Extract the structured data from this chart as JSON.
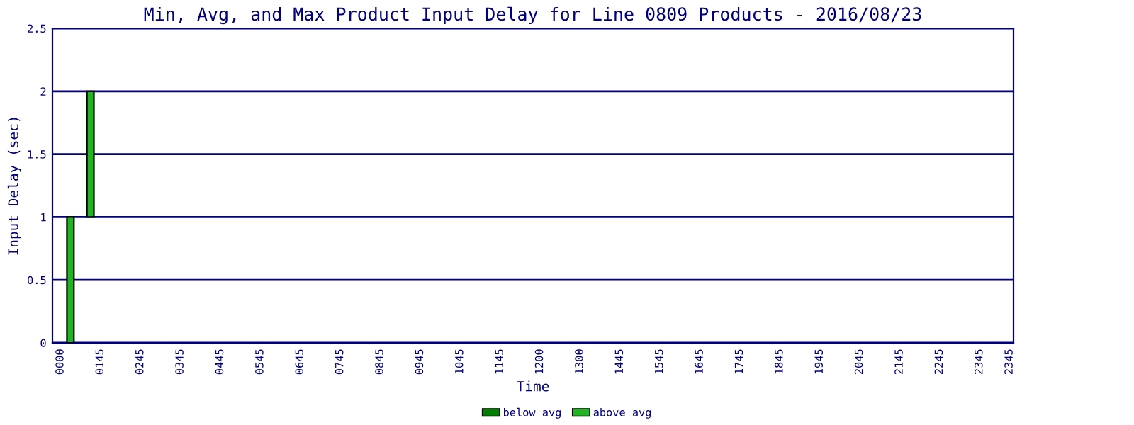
{
  "chart_data": {
    "type": "bar",
    "title": "Min, Avg, and Max Product Input Delay for Line 0809 Products - 2016/08/23",
    "xlabel": "Time",
    "ylabel": "Input Delay (sec)",
    "categories": [
      "0000",
      null,
      null,
      null,
      "0145",
      null,
      null,
      null,
      "0245",
      null,
      null,
      null,
      "0345",
      null,
      null,
      null,
      "0445",
      null,
      null,
      null,
      "0545",
      null,
      null,
      null,
      "0645",
      null,
      null,
      null,
      "0745",
      null,
      null,
      null,
      "0845",
      null,
      null,
      null,
      "0945",
      null,
      null,
      null,
      "1045",
      null,
      null,
      null,
      "1145",
      null,
      null,
      null,
      "1200",
      null,
      null,
      null,
      "1300",
      null,
      null,
      null,
      "1445",
      null,
      null,
      null,
      "1545",
      null,
      null,
      null,
      "1645",
      null,
      null,
      null,
      "1745",
      null,
      null,
      null,
      "1845",
      null,
      null,
      null,
      "1945",
      null,
      null,
      null,
      "2045",
      null,
      null,
      null,
      "2145",
      null,
      null,
      null,
      "2245",
      null,
      null,
      null,
      "2345",
      null,
      null,
      "2345"
    ],
    "series": [
      {
        "name": "below avg",
        "color": "#008000",
        "values": [
          null,
          null,
          null,
          null,
          null,
          null,
          null,
          null,
          null,
          null,
          null,
          null,
          null,
          null,
          null,
          null,
          null,
          null,
          null,
          null,
          null,
          null,
          null,
          null,
          null,
          null,
          null,
          null,
          null,
          null,
          null,
          null,
          null,
          null,
          null,
          null,
          null,
          null,
          null,
          null,
          null,
          null,
          null,
          null,
          null,
          null,
          null,
          null,
          null,
          null,
          null,
          null,
          null,
          null,
          null,
          null,
          null,
          null,
          null,
          null,
          null,
          null,
          null,
          null,
          null,
          null,
          null,
          null,
          null,
          null,
          null,
          null,
          null,
          null,
          null,
          null,
          null,
          null,
          null,
          null,
          null,
          null,
          null,
          null,
          null,
          null,
          null,
          null,
          null,
          null,
          null,
          null,
          null,
          null,
          null,
          null
        ]
      },
      {
        "name": "above avg",
        "color": "#1fb51f",
        "base": [
          null,
          0,
          null,
          1,
          null,
          null,
          null,
          null,
          null,
          null,
          null,
          null,
          null,
          null,
          null,
          null,
          null,
          null,
          null,
          null,
          null,
          null,
          null,
          null,
          null,
          null,
          null,
          null,
          null,
          null,
          null,
          null,
          null,
          null,
          null,
          null,
          null,
          null,
          null,
          null,
          null,
          null,
          null,
          null,
          null,
          null,
          null,
          null,
          null,
          null,
          null,
          null,
          null,
          null,
          null,
          null,
          null,
          null,
          null,
          null,
          null,
          null,
          null,
          null,
          null,
          null,
          null,
          null,
          null,
          null,
          null,
          null,
          null,
          null,
          null,
          null,
          null,
          null,
          null,
          null,
          null,
          null,
          null,
          null,
          null,
          null,
          null,
          null,
          null,
          null,
          null,
          null,
          null,
          null,
          null,
          null
        ],
        "values": [
          null,
          1,
          null,
          1,
          null,
          null,
          null,
          null,
          null,
          null,
          null,
          null,
          null,
          null,
          null,
          null,
          null,
          null,
          null,
          null,
          null,
          null,
          null,
          null,
          null,
          null,
          null,
          null,
          null,
          null,
          null,
          null,
          null,
          null,
          null,
          null,
          null,
          null,
          null,
          null,
          null,
          null,
          null,
          null,
          null,
          null,
          null,
          null,
          null,
          null,
          null,
          null,
          null,
          null,
          null,
          null,
          null,
          null,
          null,
          null,
          null,
          null,
          null,
          null,
          null,
          null,
          null,
          null,
          null,
          null,
          null,
          null,
          null,
          null,
          null,
          null,
          null,
          null,
          null,
          null,
          null,
          null,
          null,
          null,
          null,
          null,
          null,
          null,
          null,
          null,
          null,
          null,
          null,
          null,
          null,
          null
        ]
      }
    ],
    "ylim": [
      0,
      2.5
    ],
    "yticks": [
      0,
      0.5,
      1,
      1.5,
      2,
      2.5
    ],
    "grid": "y",
    "legend": "bottom"
  }
}
